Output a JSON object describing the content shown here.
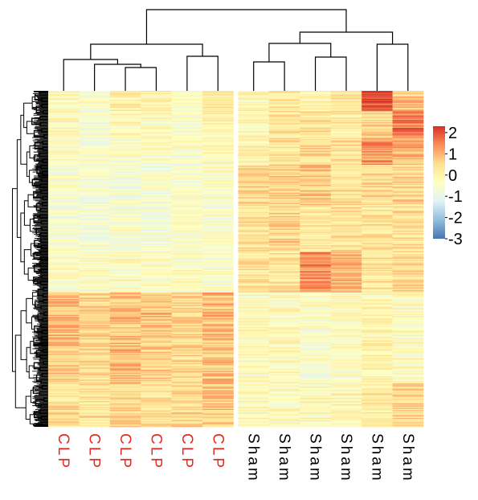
{
  "chart_data": {
    "type": "heatmap",
    "title": "",
    "xlabel": "",
    "ylabel": "",
    "columns": [
      "CLP",
      "CLP",
      "CLP",
      "CLP",
      "CLP",
      "CLP",
      "Sham",
      "Sham",
      "Sham",
      "Sham",
      "Sham",
      "Sham"
    ],
    "column_groups": [
      {
        "name": "CLP",
        "color": "#e8281e"
      },
      {
        "name": "Sham",
        "color": "#000000"
      }
    ],
    "row_count_label": "",
    "color_scale": {
      "ticks": [
        "2",
        "1",
        "0",
        "-1",
        "-2",
        "-3"
      ],
      "tick_values": [
        2,
        1,
        0,
        -1,
        -2,
        -3
      ],
      "range": [
        -3,
        2.3
      ],
      "colors": [
        "#4575b4",
        "#91bfdb",
        "#e0f3f8",
        "#ffffbf",
        "#fee090",
        "#fc8d59",
        "#d73027"
      ]
    },
    "column_gap_after": 6,
    "blocks": [
      {
        "row_range": [
          0.0,
          0.06
        ],
        "values": [
          -0.2,
          -0.4,
          0.1,
          0.0,
          -0.3,
          0.2,
          -0.1,
          0.2,
          0.0,
          0.2,
          2.0,
          0.8
        ]
      },
      {
        "row_range": [
          0.06,
          0.14
        ],
        "values": [
          -0.3,
          -0.6,
          -0.2,
          -0.3,
          -0.4,
          0.0,
          -0.2,
          0.3,
          0.3,
          0.2,
          0.6,
          1.6
        ]
      },
      {
        "row_range": [
          0.14,
          0.22
        ],
        "values": [
          -0.4,
          -0.5,
          -0.5,
          -0.4,
          -0.5,
          -0.3,
          0.0,
          0.4,
          0.5,
          0.4,
          1.3,
          1.0
        ]
      },
      {
        "row_range": [
          0.22,
          0.34
        ],
        "values": [
          -0.5,
          -0.7,
          -0.6,
          -0.6,
          -0.5,
          -0.4,
          0.5,
          0.6,
          0.7,
          0.4,
          0.5,
          0.6
        ]
      },
      {
        "row_range": [
          0.34,
          0.48
        ],
        "values": [
          -0.6,
          -0.6,
          -0.5,
          -0.6,
          -0.5,
          -0.5,
          0.3,
          0.6,
          0.2,
          0.4,
          0.3,
          0.4
        ]
      },
      {
        "row_range": [
          0.48,
          0.6
        ],
        "values": [
          -0.4,
          -0.4,
          -0.3,
          -0.4,
          -0.3,
          -0.5,
          0.4,
          0.3,
          1.4,
          1.0,
          0.3,
          0.5
        ]
      },
      {
        "row_range": [
          0.6,
          0.74
        ],
        "values": [
          0.9,
          0.6,
          0.8,
          0.8,
          0.5,
          0.9,
          -0.3,
          -0.3,
          -0.4,
          -0.3,
          -0.2,
          -0.3
        ]
      },
      {
        "row_range": [
          0.74,
          0.87
        ],
        "values": [
          0.7,
          0.4,
          0.9,
          0.6,
          0.5,
          0.8,
          -0.3,
          -0.2,
          -0.5,
          -0.4,
          0.0,
          -0.3
        ]
      },
      {
        "row_range": [
          0.87,
          1.0
        ],
        "values": [
          0.4,
          0.3,
          0.5,
          0.3,
          0.5,
          0.7,
          -0.2,
          -0.3,
          -0.2,
          -0.1,
          0.2,
          0.5
        ]
      }
    ],
    "grid": false,
    "legend_position": "right",
    "column_dendrogram": true,
    "row_dendrogram": true
  }
}
